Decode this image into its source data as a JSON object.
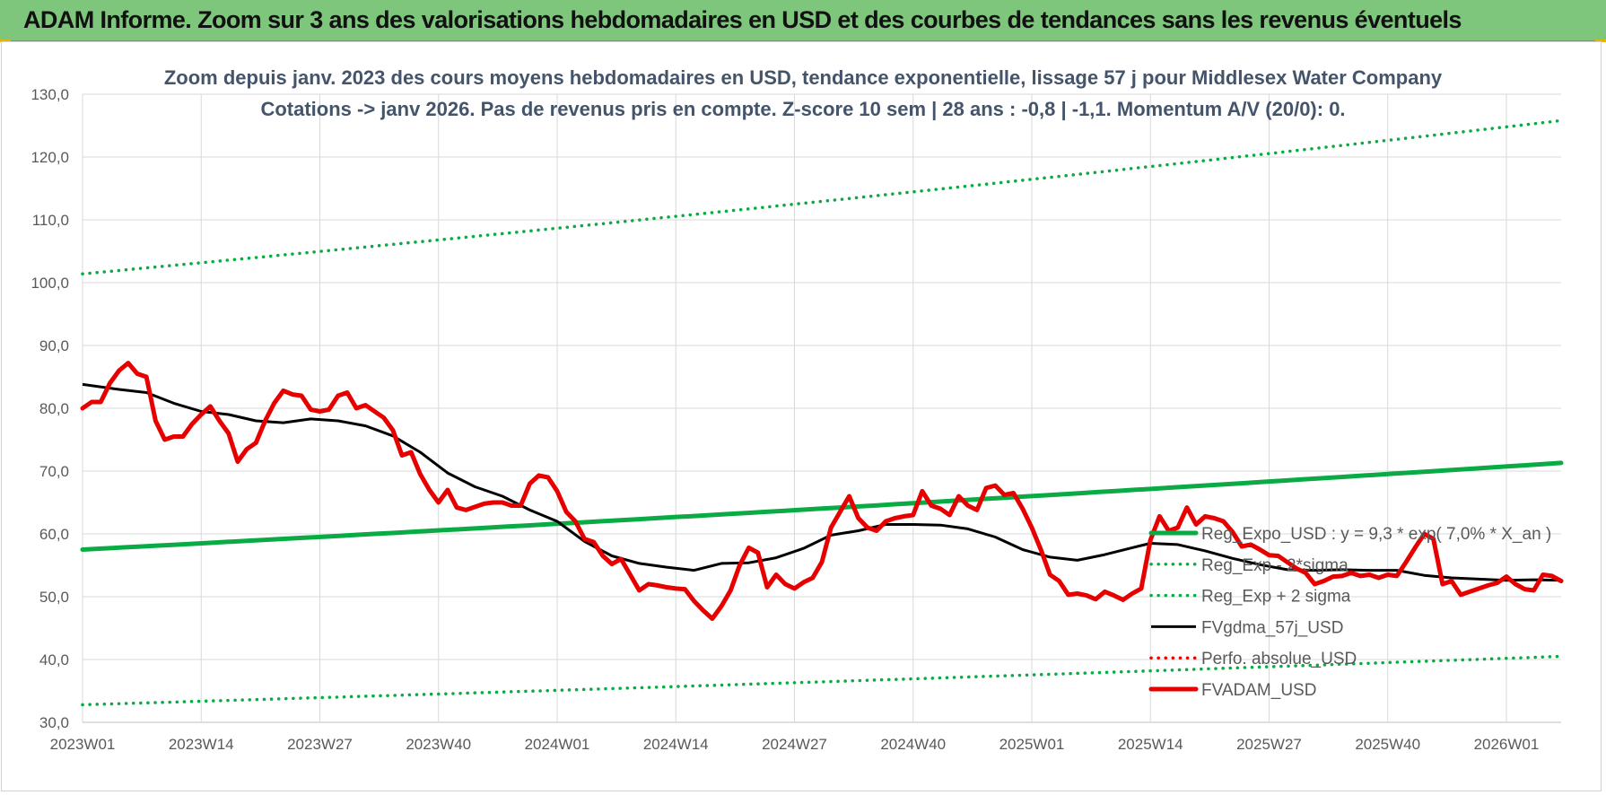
{
  "banner": {
    "title": "ADAM Informe. Zoom sur 3 ans des valorisations hebdomadaires en USD et des courbes de tendances sans les revenus éventuels"
  },
  "colors": {
    "banner_bg": "#7dc67b",
    "green": "#0aab45",
    "black": "#000000",
    "red": "#e60000",
    "grid": "#d9d9d9",
    "title_text": "#44546a"
  },
  "chart_data": {
    "type": "line",
    "title": "Zoom depuis janv. 2023 des cours moyens hebdomadaires en USD, tendance exponentielle, lissage 57 j pour Middlesex Water Company",
    "subtitle": "Cotations -> janv 2026. Pas de revenus pris en compte. Z-score 10 sem | 28 ans : -0,8 | -1,1. Momentum A/V (20/0): 0.",
    "xlabel": "",
    "ylabel": "",
    "ylim": [
      30,
      130
    ],
    "y_ticks": [
      "130,0",
      "120,0",
      "110,0",
      "100,0",
      "90,0",
      "80,0",
      "70,0",
      "60,0",
      "50,0",
      "40,0",
      "30,0"
    ],
    "y_tick_values": [
      130,
      120,
      110,
      100,
      90,
      80,
      70,
      60,
      50,
      40,
      30
    ],
    "x_ticks": [
      "2023W01",
      "2023W14",
      "2023W27",
      "2023W40",
      "2024W01",
      "2024W14",
      "2024W27",
      "2024W40",
      "2025W01",
      "2025W14",
      "2025W27",
      "2025W40",
      "2026W01"
    ],
    "x_tick_weeks": [
      0,
      13,
      26,
      39,
      52,
      65,
      78,
      91,
      104,
      117,
      130,
      143,
      156
    ],
    "x_range_weeks": [
      0,
      162
    ],
    "grid": true,
    "legend_position": "right",
    "series": [
      {
        "name": "Reg_Expo_USD : y = 9,3 * exp( 7,0% * X_an )",
        "style": "solid-thick",
        "color": "#0aab45",
        "x": [
          0,
          162
        ],
        "values": [
          57.5,
          71.3
        ]
      },
      {
        "name": "Reg_Exp - 2*sigma",
        "style": "dotted",
        "color": "#0aab45",
        "x": [
          0,
          162
        ],
        "values": [
          32.8,
          40.5
        ]
      },
      {
        "name": "Reg_Exp + 2 sigma",
        "style": "dotted",
        "color": "#0aab45",
        "x": [
          0,
          162
        ],
        "values": [
          101.4,
          125.8
        ]
      },
      {
        "name": "FVgdma_57j_USD",
        "style": "solid",
        "color": "#000000",
        "x": [
          0,
          4,
          7,
          10,
          13,
          16,
          19,
          22,
          25,
          28,
          31,
          34,
          37,
          40,
          43,
          46,
          49,
          52,
          55,
          58,
          61,
          64,
          67,
          70,
          73,
          76,
          79,
          82,
          85,
          88,
          91,
          94,
          97,
          100,
          103,
          106,
          109,
          112,
          115,
          117,
          120,
          123,
          126,
          129,
          132,
          135,
          138,
          141,
          144,
          147,
          150,
          153,
          156,
          159,
          162
        ],
        "values": [
          83.8,
          83,
          82.5,
          80.8,
          79.5,
          79,
          78,
          77.7,
          78.3,
          78,
          77.2,
          75.6,
          73,
          69.7,
          67.5,
          66,
          63.8,
          62,
          58.8,
          56.5,
          55.3,
          54.7,
          54.2,
          55.3,
          55.4,
          56.2,
          57.7,
          59.8,
          60.5,
          61.5,
          61.5,
          61.4,
          60.8,
          59.5,
          57.5,
          56.3,
          55.8,
          56.7,
          57.8,
          58.5,
          58.3,
          57.3,
          56.1,
          55.1,
          54.3,
          54.2,
          54.3,
          54.2,
          54.2,
          53.4,
          53,
          52.8,
          52.6,
          52.7,
          52.6
        ]
      },
      {
        "name": "Perfo. absolue_USD",
        "style": "dotted",
        "color": "#e60000",
        "x": [],
        "values": []
      },
      {
        "name": "FVADAM_USD",
        "style": "solid-thick",
        "color": "#e60000",
        "x": [
          0,
          1,
          2,
          3,
          4,
          5,
          6,
          7,
          8,
          9,
          10,
          11,
          12,
          13,
          14,
          15,
          16,
          17,
          18,
          19,
          20,
          21,
          22,
          23,
          24,
          25,
          26,
          27,
          28,
          29,
          30,
          31,
          32,
          33,
          34,
          35,
          36,
          37,
          38,
          39,
          40,
          41,
          42,
          43,
          44,
          45,
          46,
          47,
          48,
          49,
          50,
          51,
          52,
          53,
          54,
          55,
          56,
          57,
          58,
          59,
          60,
          61,
          62,
          63,
          64,
          65,
          66,
          67,
          68,
          69,
          70,
          71,
          72,
          73,
          74,
          75,
          76,
          77,
          78,
          79,
          80,
          81,
          82,
          83,
          84,
          85,
          86,
          87,
          88,
          89,
          90,
          91,
          92,
          93,
          94,
          95,
          96,
          97,
          98,
          99,
          100,
          101,
          102,
          103,
          104,
          105,
          106,
          107,
          108,
          109,
          110,
          111,
          112,
          113,
          114,
          115,
          116,
          117,
          118,
          119,
          120,
          121,
          122,
          123,
          124,
          125,
          126,
          127,
          128,
          129,
          130,
          131,
          132,
          133,
          134,
          135,
          136,
          137,
          138,
          139,
          140,
          141,
          142,
          143,
          144,
          145,
          146,
          147,
          148,
          149,
          150,
          151,
          152,
          153,
          154,
          155,
          156,
          157,
          158,
          159,
          160,
          161,
          162
        ],
        "values": [
          80,
          81,
          81,
          84,
          86,
          87.2,
          85.5,
          85,
          78,
          75,
          75.5,
          75.5,
          77.5,
          79,
          80.3,
          78,
          76,
          71.5,
          73.5,
          74.5,
          78,
          80.8,
          82.8,
          82.2,
          82,
          79.8,
          79.5,
          79.8,
          82,
          82.5,
          80,
          80.5,
          79.5,
          78.5,
          76.5,
          72.5,
          73,
          69.5,
          67,
          65,
          67,
          64.2,
          63.8,
          64.3,
          64.8,
          65,
          65,
          64.5,
          64.5,
          68,
          69.3,
          69,
          66.8,
          63.5,
          62,
          59.2,
          58.7,
          56.5,
          55.2,
          56,
          53.5,
          51,
          52,
          51.8,
          51.5,
          51.3,
          51.2,
          49.3,
          47.8,
          46.5,
          48.5,
          51,
          55,
          57.8,
          57,
          51.5,
          53.5,
          52,
          51.3,
          52.3,
          53,
          55.5,
          61,
          63.5,
          66,
          62.5,
          61,
          60.5,
          62,
          62.5,
          62.8,
          63,
          66.8,
          64.5,
          64,
          63,
          66,
          64.5,
          63.8,
          67.3,
          67.7,
          66.2,
          66.5,
          64,
          61,
          57.5,
          53.5,
          52.5,
          50.3,
          50.5,
          50.2,
          49.6,
          50.8,
          50.2,
          49.5,
          50.5,
          51.3,
          59,
          62.8,
          60.5,
          61,
          64.2,
          61.5,
          62.8,
          62.5,
          62,
          60.3,
          58,
          58.3,
          57.5,
          56.6,
          56.5,
          55.5,
          54.5,
          53.8,
          52,
          52.5,
          53.2,
          53.3,
          53.8,
          53.3,
          53.5,
          53,
          53.5,
          53.3,
          55.5,
          57.8,
          60,
          59.2,
          52,
          52.5,
          50.3,
          50.8,
          51.3,
          51.8,
          52.2,
          53.2,
          52,
          51.2,
          51,
          53.5,
          53.3,
          52.5
        ]
      }
    ]
  }
}
